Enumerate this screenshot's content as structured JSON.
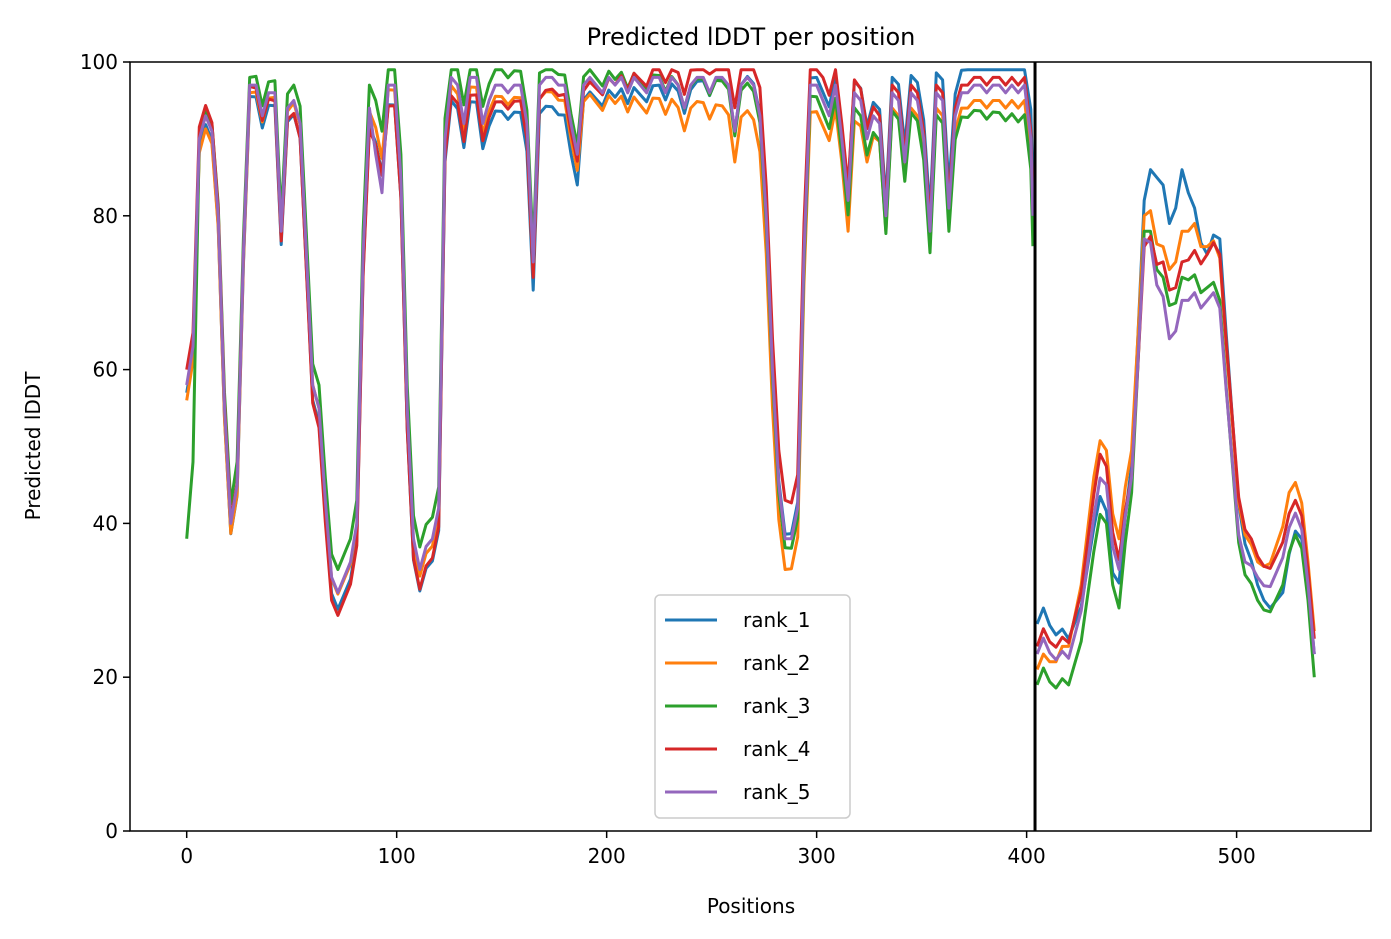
{
  "chart_data": {
    "type": "line",
    "title": "Predicted lDDT per position",
    "xlabel": "Positions",
    "ylabel": "Predicted lDDT",
    "xlim": [
      -27,
      564
    ],
    "ylim": [
      0,
      100
    ],
    "xticks": [
      0,
      100,
      200,
      300,
      400,
      500
    ],
    "yticks": [
      0,
      20,
      40,
      60,
      80,
      100
    ],
    "chain_break": 404,
    "legend_position": "lower-center",
    "grid": false,
    "colors": [
      "#1f77b4",
      "#ff7f0e",
      "#2ca02c",
      "#d62728",
      "#9467bd"
    ],
    "base_profile": [
      [
        0,
        58
      ],
      [
        3,
        63
      ],
      [
        6,
        90
      ],
      [
        9,
        93
      ],
      [
        12,
        91
      ],
      [
        15,
        80
      ],
      [
        18,
        55
      ],
      [
        21,
        40
      ],
      [
        24,
        45
      ],
      [
        27,
        75
      ],
      [
        30,
        97
      ],
      [
        33,
        97
      ],
      [
        36,
        93
      ],
      [
        39,
        96
      ],
      [
        42,
        96
      ],
      [
        45,
        78
      ],
      [
        48,
        94
      ],
      [
        51,
        95
      ],
      [
        54,
        92
      ],
      [
        57,
        75
      ],
      [
        60,
        58
      ],
      [
        63,
        55
      ],
      [
        66,
        43
      ],
      [
        69,
        33
      ],
      [
        72,
        31
      ],
      [
        75,
        33
      ],
      [
        78,
        35
      ],
      [
        81,
        40
      ],
      [
        84,
        75
      ],
      [
        87,
        94
      ],
      [
        90,
        92
      ],
      [
        93,
        88
      ],
      [
        96,
        97
      ],
      [
        99,
        97
      ],
      [
        102,
        85
      ],
      [
        105,
        55
      ],
      [
        108,
        38
      ],
      [
        111,
        34
      ],
      [
        114,
        37
      ],
      [
        117,
        38
      ],
      [
        120,
        42
      ],
      [
        123,
        90
      ],
      [
        126,
        98
      ],
      [
        129,
        97
      ],
      [
        132,
        92
      ],
      [
        135,
        98
      ],
      [
        138,
        98
      ],
      [
        141,
        92
      ],
      [
        144,
        95
      ],
      [
        147,
        97
      ],
      [
        150,
        97
      ],
      [
        153,
        96
      ],
      [
        156,
        97
      ],
      [
        159,
        97
      ],
      [
        162,
        92
      ],
      [
        165,
        74
      ],
      [
        168,
        97
      ],
      [
        171,
        98
      ],
      [
        174,
        98
      ],
      [
        177,
        97
      ],
      [
        180,
        97
      ],
      [
        183,
        92
      ],
      [
        186,
        88
      ],
      [
        189,
        97
      ],
      [
        192,
        98
      ],
      [
        195,
        97
      ],
      [
        198,
        96
      ],
      [
        201,
        98
      ],
      [
        204,
        97
      ],
      [
        207,
        98
      ],
      [
        210,
        96
      ],
      [
        213,
        98
      ],
      [
        216,
        97
      ],
      [
        219,
        96
      ],
      [
        222,
        98
      ],
      [
        225,
        98
      ],
      [
        228,
        96
      ],
      [
        231,
        98
      ],
      [
        234,
        97
      ],
      [
        237,
        94
      ],
      [
        240,
        97
      ],
      [
        243,
        98
      ],
      [
        246,
        98
      ],
      [
        249,
        96
      ],
      [
        252,
        98
      ],
      [
        255,
        98
      ],
      [
        258,
        97
      ],
      [
        261,
        91
      ],
      [
        264,
        97
      ],
      [
        267,
        98
      ],
      [
        270,
        97
      ],
      [
        273,
        93
      ],
      [
        276,
        80
      ],
      [
        279,
        60
      ],
      [
        282,
        45
      ],
      [
        285,
        38
      ],
      [
        288,
        38
      ],
      [
        291,
        42
      ],
      [
        294,
        75
      ],
      [
        297,
        97
      ],
      [
        300,
        97
      ],
      [
        303,
        95
      ],
      [
        306,
        93
      ],
      [
        309,
        97
      ],
      [
        312,
        90
      ],
      [
        315,
        82
      ],
      [
        318,
        96
      ],
      [
        321,
        95
      ],
      [
        324,
        90
      ],
      [
        327,
        93
      ],
      [
        330,
        92
      ],
      [
        333,
        80
      ],
      [
        336,
        96
      ],
      [
        339,
        95
      ],
      [
        342,
        87
      ],
      [
        345,
        96
      ],
      [
        348,
        95
      ],
      [
        351,
        90
      ],
      [
        354,
        78
      ],
      [
        357,
        96
      ],
      [
        360,
        95
      ],
      [
        363,
        81
      ],
      [
        366,
        93
      ],
      [
        369,
        96
      ],
      [
        372,
        96
      ],
      [
        375,
        97
      ],
      [
        378,
        97
      ],
      [
        381,
        96
      ],
      [
        384,
        97
      ],
      [
        387,
        97
      ],
      [
        390,
        96
      ],
      [
        393,
        97
      ],
      [
        396,
        96
      ],
      [
        399,
        97
      ],
      [
        402,
        90
      ],
      [
        403,
        80
      ],
      null,
      [
        405,
        23
      ],
      [
        408,
        25
      ],
      [
        411,
        23
      ],
      [
        414,
        22
      ],
      [
        417,
        23
      ],
      [
        420,
        22
      ],
      [
        423,
        25
      ],
      [
        426,
        28
      ],
      [
        429,
        34
      ],
      [
        432,
        40
      ],
      [
        435,
        45
      ],
      [
        438,
        44
      ],
      [
        441,
        36
      ],
      [
        444,
        33
      ],
      [
        447,
        40
      ],
      [
        450,
        45
      ],
      [
        453,
        60
      ],
      [
        456,
        76
      ],
      [
        459,
        77
      ],
      [
        462,
        73
      ],
      [
        465,
        73
      ],
      [
        468,
        69
      ],
      [
        471,
        69
      ],
      [
        474,
        72
      ],
      [
        477,
        72
      ],
      [
        480,
        73
      ],
      [
        483,
        71
      ],
      [
        486,
        72
      ],
      [
        489,
        73
      ],
      [
        492,
        71
      ],
      [
        495,
        60
      ],
      [
        498,
        50
      ],
      [
        501,
        40
      ],
      [
        504,
        36
      ],
      [
        507,
        35
      ],
      [
        510,
        33
      ],
      [
        513,
        32
      ],
      [
        516,
        32
      ],
      [
        519,
        34
      ],
      [
        522,
        36
      ],
      [
        525,
        40
      ],
      [
        528,
        42
      ],
      [
        531,
        40
      ],
      [
        534,
        33
      ],
      [
        537,
        24
      ]
    ],
    "series": [
      {
        "name": "rank_1",
        "offsets": [
          [
            0,
            -1
          ],
          [
            186,
            -4
          ],
          [
            188,
            -2
          ],
          [
            300,
            1
          ],
          [
            408,
            4
          ],
          [
            420,
            3
          ],
          [
            440,
            -3
          ],
          [
            456,
            6
          ],
          [
            462,
            12
          ],
          [
            468,
            10
          ],
          [
            474,
            14
          ],
          [
            480,
            8
          ],
          [
            486,
            3
          ],
          [
            492,
            6
          ],
          [
            510,
            -1
          ],
          [
            522,
            -5
          ],
          [
            534,
            -1
          ]
        ]
      },
      {
        "name": "rank_2",
        "offsets": [
          [
            0,
            -2
          ],
          [
            60,
            0
          ],
          [
            240,
            -3
          ],
          [
            261,
            -4
          ],
          [
            279,
            -5
          ],
          [
            285,
            -4
          ],
          [
            312,
            -3
          ],
          [
            315,
            -4
          ],
          [
            333,
            -2
          ],
          [
            408,
            -2
          ],
          [
            432,
            6
          ],
          [
            456,
            4
          ],
          [
            465,
            3
          ],
          [
            474,
            6
          ],
          [
            480,
            6
          ],
          [
            486,
            4
          ],
          [
            510,
            2
          ],
          [
            525,
            4
          ],
          [
            534,
            2
          ]
        ]
      },
      {
        "name": "rank_3",
        "offsets": [
          [
            0,
            -20
          ],
          [
            3,
            -15
          ],
          [
            6,
            0
          ],
          [
            24,
            3
          ],
          [
            30,
            1
          ],
          [
            51,
            2
          ],
          [
            63,
            3
          ],
          [
            108,
            3
          ],
          [
            405,
            -4
          ],
          [
            420,
            -3
          ],
          [
            438,
            -4
          ],
          [
            444,
            -4
          ],
          [
            456,
            2
          ],
          [
            465,
            -1
          ],
          [
            474,
            0
          ],
          [
            492,
            -2
          ],
          [
            510,
            -3
          ],
          [
            522,
            -4
          ],
          [
            534,
            -3
          ],
          [
            537,
            -4
          ]
        ]
      },
      {
        "name": "rank_4",
        "offsets": [
          [
            0,
            2
          ],
          [
            69,
            -3
          ],
          [
            165,
            -2
          ],
          [
            279,
            4
          ],
          [
            285,
            5
          ],
          [
            312,
            2
          ],
          [
            330,
            1
          ],
          [
            405,
            1
          ],
          [
            435,
            4
          ],
          [
            456,
            0
          ],
          [
            474,
            2
          ],
          [
            486,
            3
          ],
          [
            492,
            4
          ],
          [
            507,
            3
          ],
          [
            528,
            1
          ],
          [
            537,
            1
          ]
        ]
      },
      {
        "name": "rank_5",
        "offsets": [
          [
            0,
            0
          ],
          [
            87,
            0
          ],
          [
            90,
            -4
          ],
          [
            93,
            -5
          ],
          [
            96,
            0
          ],
          [
            405,
            0
          ],
          [
            438,
            1
          ],
          [
            456,
            1
          ],
          [
            468,
            -5
          ],
          [
            474,
            -3
          ],
          [
            492,
            -3
          ],
          [
            510,
            0
          ],
          [
            537,
            -1
          ]
        ]
      }
    ]
  }
}
